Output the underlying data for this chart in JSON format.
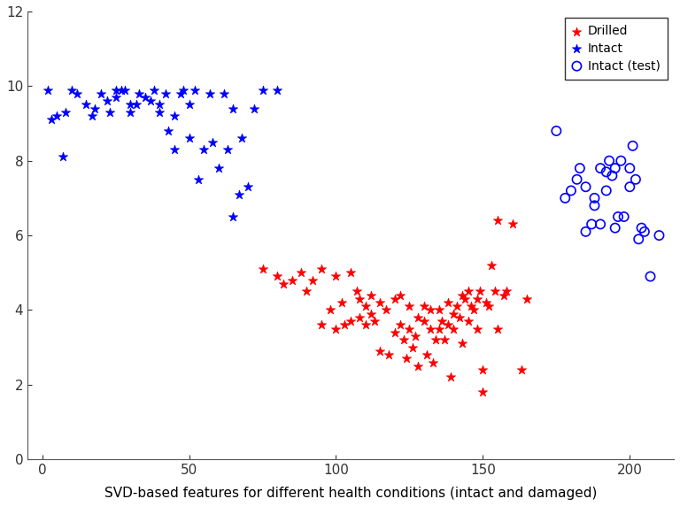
{
  "title": "SVD-based features for different health conditions (intact and damaged)",
  "xlim": [
    -5,
    215
  ],
  "ylim": [
    0,
    12
  ],
  "xticks": [
    0,
    50,
    100,
    150,
    200
  ],
  "yticks": [
    0,
    2,
    4,
    6,
    8,
    10,
    12
  ],
  "drilled_x": [
    75,
    80,
    82,
    85,
    88,
    90,
    92,
    95,
    95,
    98,
    100,
    100,
    102,
    103,
    105,
    105,
    107,
    108,
    108,
    110,
    110,
    112,
    112,
    113,
    115,
    115,
    117,
    118,
    120,
    120,
    122,
    122,
    123,
    124,
    125,
    125,
    126,
    127,
    128,
    128,
    130,
    130,
    131,
    132,
    132,
    133,
    134,
    135,
    135,
    136,
    137,
    138,
    138,
    139,
    140,
    140,
    141,
    142,
    143,
    143,
    144,
    145,
    145,
    146,
    147,
    148,
    148,
    149,
    150,
    150,
    151,
    152,
    153,
    154,
    155,
    155,
    157,
    158,
    160,
    163,
    165
  ],
  "drilled_y": [
    5.1,
    4.9,
    4.7,
    4.8,
    5.0,
    4.5,
    4.8,
    5.1,
    3.6,
    4.0,
    4.9,
    3.5,
    4.2,
    3.6,
    5.0,
    3.7,
    4.5,
    4.3,
    3.8,
    4.1,
    3.6,
    4.4,
    3.9,
    3.7,
    4.2,
    2.9,
    4.0,
    2.8,
    4.3,
    3.4,
    4.4,
    3.6,
    3.2,
    2.7,
    4.1,
    3.5,
    3.0,
    3.3,
    3.8,
    2.5,
    4.1,
    3.7,
    2.8,
    3.5,
    4.0,
    2.6,
    3.2,
    4.0,
    3.5,
    3.7,
    3.2,
    4.2,
    3.6,
    2.2,
    3.9,
    3.5,
    4.1,
    3.8,
    4.4,
    3.1,
    4.3,
    3.7,
    4.5,
    4.1,
    4.0,
    4.3,
    3.5,
    4.5,
    2.4,
    1.8,
    4.2,
    4.1,
    5.2,
    4.5,
    3.5,
    6.4,
    4.4,
    4.5,
    6.3,
    2.4,
    4.3
  ],
  "intact_x": [
    2,
    3,
    5,
    7,
    8,
    10,
    12,
    15,
    17,
    18,
    20,
    22,
    23,
    25,
    25,
    27,
    28,
    30,
    30,
    32,
    33,
    35,
    37,
    38,
    40,
    40,
    42,
    43,
    45,
    45,
    47,
    48,
    50,
    50,
    52,
    53,
    55,
    57,
    58,
    60,
    62,
    63,
    65,
    65,
    67,
    68,
    70,
    72,
    75,
    80
  ],
  "intact_y": [
    9.9,
    9.1,
    9.2,
    8.1,
    9.3,
    9.9,
    9.8,
    9.5,
    9.2,
    9.4,
    9.8,
    9.6,
    9.3,
    9.9,
    9.7,
    9.9,
    9.9,
    9.5,
    9.3,
    9.5,
    9.8,
    9.7,
    9.6,
    9.9,
    9.3,
    9.5,
    9.8,
    8.8,
    9.2,
    8.3,
    9.8,
    9.9,
    8.6,
    9.5,
    9.9,
    7.5,
    8.3,
    9.8,
    8.5,
    7.8,
    9.8,
    8.3,
    9.4,
    6.5,
    7.1,
    8.6,
    7.3,
    9.4,
    9.9,
    9.9
  ],
  "intact_test_x": [
    175,
    178,
    180,
    182,
    183,
    185,
    185,
    187,
    188,
    188,
    190,
    190,
    192,
    192,
    193,
    194,
    195,
    195,
    196,
    197,
    198,
    200,
    200,
    201,
    202,
    203,
    204,
    205,
    207,
    210
  ],
  "intact_test_y": [
    8.8,
    7.0,
    7.2,
    7.5,
    7.8,
    6.1,
    7.3,
    6.3,
    7.0,
    6.8,
    7.8,
    6.3,
    7.7,
    7.2,
    8.0,
    7.6,
    6.2,
    7.8,
    6.5,
    8.0,
    6.5,
    7.8,
    7.3,
    8.4,
    7.5,
    5.9,
    6.2,
    6.1,
    4.9,
    6.0
  ],
  "drilled_color": "#FF0000",
  "intact_color": "#0000FF",
  "intact_test_color": "#0000FF",
  "bg_color": "#FFFFFF",
  "legend_fontsize": 10,
  "tick_fontsize": 11,
  "title_fontsize": 11
}
